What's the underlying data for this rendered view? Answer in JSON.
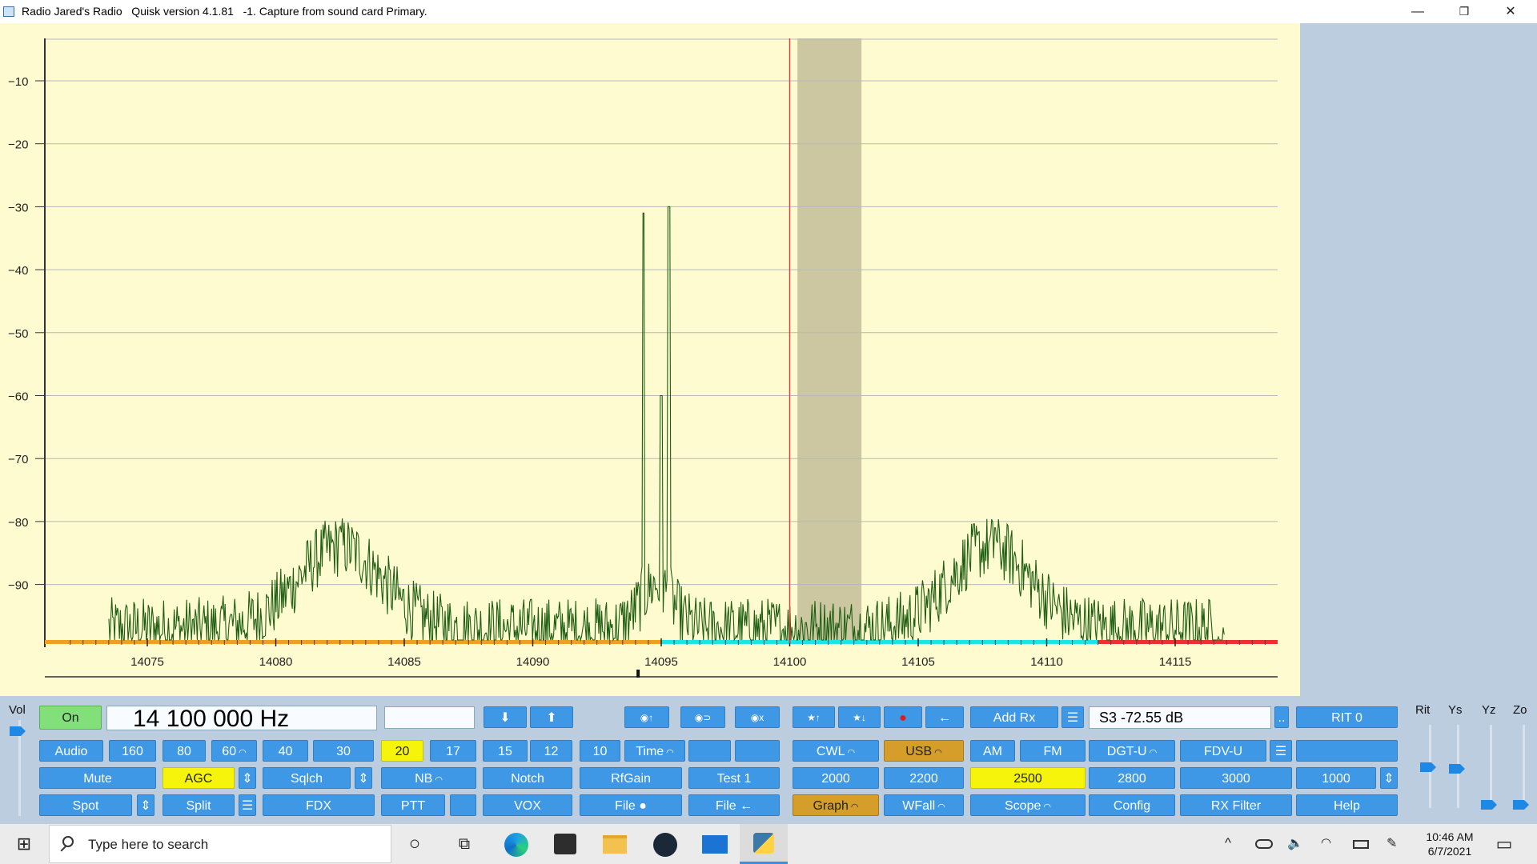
{
  "window": {
    "title": "Radio Jared's Radio   Quisk version 4.1.81   -1. Capture from sound card Primary.",
    "minimize": "—",
    "restore": "❐",
    "close": "✕"
  },
  "spectrum": {
    "y_labels": [
      "-10",
      "-20",
      "-30",
      "-40",
      "-50",
      "-60",
      "-70",
      "-80",
      "-90"
    ],
    "x_labels": [
      "14075",
      "14080",
      "14085",
      "14090",
      "14095",
      "14100",
      "14105",
      "14110",
      "14115"
    ],
    "band_colors": {
      "orange": "#f0a020",
      "cyan": "#19e6e6",
      "red": "#f03030"
    },
    "trace_color": "#1d5e12",
    "tune_line_color": "#e04040",
    "filter_color": "#ccc7a0",
    "signals": [
      {
        "freq_khz": 14094.3,
        "level_db": -31
      },
      {
        "freq_khz": 14095.3,
        "level_db": -30
      },
      {
        "freq_khz": 14095.0,
        "level_db": -60
      },
      {
        "freq_khz": 14082.5,
        "level_db": -81
      },
      {
        "freq_khz": 14108.0,
        "level_db": -81
      }
    ]
  },
  "controls": {
    "vol_label": "Vol",
    "rit_label": "Rit",
    "ys_label": "Ys",
    "yz_label": "Yz",
    "zo_label": "Zo",
    "on": "On",
    "frequency": "14 100 000 Hz",
    "freq_down": "⬇",
    "freq_up": "⬆",
    "mem_store": "◉↑",
    "mem_recall": "◉⊃",
    "mem_clear": "◉x",
    "fav_up": "★↑",
    "fav_down": "★↓",
    "record": "●",
    "play": "←",
    "add_rx": "Add Rx",
    "menu": "☰",
    "smeter": "S3   -72.55 dB",
    "smeter_more": "..",
    "rit": "RIT 0",
    "audio": "Audio",
    "band_160": "160",
    "band_80": "80",
    "band_60": "60",
    "band_40": "40",
    "band_30": "30",
    "band_20": "20",
    "band_17": "17",
    "band_15": "15",
    "band_12": "12",
    "band_10": "10",
    "time": "Time",
    "cwl": "CWL",
    "usb": "USB",
    "am": "AM",
    "fm": "FM",
    "dgtu": "DGT-U",
    "fdvu": "FDV-U",
    "mute": "Mute",
    "agc": "AGC",
    "adjust": "⇕",
    "sqlch": "Sqlch",
    "nb": "NB",
    "notch": "Notch",
    "rfgain": "RfGain",
    "test1": "Test 1",
    "bw_2000": "2000",
    "bw_2200": "2200",
    "bw_2500": "2500",
    "bw_2800": "2800",
    "bw_3000": "3000",
    "bw_1000": "1000",
    "spot": "Spot",
    "split": "Split",
    "fdx": "FDX",
    "ptt": "PTT",
    "vox": "VOX",
    "file_play": "File ●",
    "file_back": "File ←",
    "graph": "Graph",
    "wfall": "WFall",
    "scope": "Scope",
    "config": "Config",
    "rx_filter": "RX Filter",
    "help": "Help"
  },
  "taskbar": {
    "start": "⊞",
    "search_placeholder": "Type here to search",
    "cortana": "○",
    "taskview": "⧉",
    "tray_up": "^",
    "time": "10:46 AM",
    "date": "6/7/2021",
    "notifications": "▭"
  }
}
